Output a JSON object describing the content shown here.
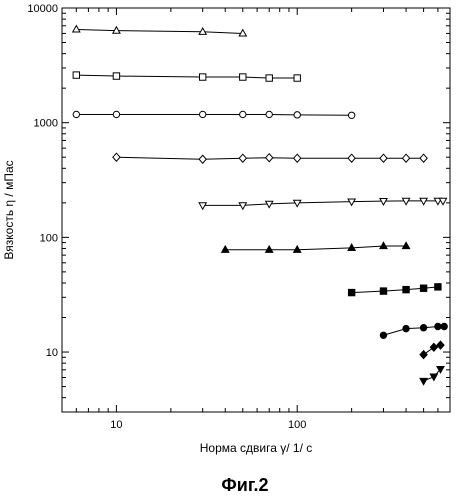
{
  "chart_data": {
    "type": "scatter",
    "title": "",
    "xlabel": "Норма сдвига γ/ 1/ с",
    "ylabel": "Вязкость η / мПас",
    "caption": "Фиг.2",
    "xscale": "log",
    "yscale": "log",
    "xlim": [
      5,
      700
    ],
    "ylim": [
      3,
      10000
    ],
    "x_ticks": [
      10,
      100
    ],
    "x_tick_labels": [
      "10",
      "100"
    ],
    "y_ticks": [
      10,
      100,
      1000,
      10000
    ],
    "y_tick_labels": [
      "10",
      "100",
      "1000",
      "10000"
    ],
    "grid": false,
    "legend": "none",
    "series": [
      {
        "marker": "triangle-up-open",
        "points": [
          [
            6,
            6500
          ],
          [
            10,
            6350
          ],
          [
            30,
            6200
          ],
          [
            50,
            6000
          ]
        ]
      },
      {
        "marker": "square-open",
        "points": [
          [
            6,
            2600
          ],
          [
            10,
            2550
          ],
          [
            30,
            2500
          ],
          [
            50,
            2500
          ],
          [
            70,
            2450
          ],
          [
            100,
            2450
          ]
        ]
      },
      {
        "marker": "circle-open",
        "points": [
          [
            6,
            1180
          ],
          [
            10,
            1180
          ],
          [
            30,
            1180
          ],
          [
            50,
            1180
          ],
          [
            70,
            1180
          ],
          [
            100,
            1170
          ],
          [
            200,
            1160
          ]
        ]
      },
      {
        "marker": "diamond-open",
        "points": [
          [
            10,
            500
          ],
          [
            30,
            480
          ],
          [
            50,
            490
          ],
          [
            70,
            495
          ],
          [
            100,
            490
          ],
          [
            200,
            490
          ],
          [
            300,
            490
          ],
          [
            400,
            490
          ],
          [
            500,
            490
          ]
        ]
      },
      {
        "marker": "triangle-down-open",
        "points": [
          [
            30,
            190
          ],
          [
            50,
            190
          ],
          [
            70,
            196
          ],
          [
            100,
            200
          ],
          [
            200,
            205
          ],
          [
            300,
            207
          ],
          [
            400,
            208
          ],
          [
            500,
            208
          ],
          [
            600,
            208
          ],
          [
            640,
            208
          ]
        ]
      },
      {
        "marker": "triangle-up-filled",
        "points": [
          [
            40,
            78
          ],
          [
            70,
            78
          ],
          [
            100,
            78
          ],
          [
            200,
            81
          ],
          [
            300,
            84
          ],
          [
            400,
            84
          ]
        ]
      },
      {
        "marker": "square-filled",
        "points": [
          [
            200,
            33
          ],
          [
            300,
            34
          ],
          [
            400,
            35
          ],
          [
            500,
            36
          ],
          [
            600,
            37
          ]
        ]
      },
      {
        "marker": "circle-filled",
        "points": [
          [
            300,
            14
          ],
          [
            400,
            16
          ],
          [
            500,
            16.3
          ],
          [
            600,
            16.7
          ],
          [
            650,
            16.7
          ]
        ]
      },
      {
        "marker": "diamond-filled",
        "points": [
          [
            500,
            9.5
          ],
          [
            570,
            11
          ],
          [
            620,
            11.5
          ]
        ]
      },
      {
        "marker": "triangle-down-filled",
        "points": [
          [
            500,
            5.6
          ],
          [
            570,
            6.1
          ],
          [
            620,
            7.1
          ]
        ]
      }
    ]
  }
}
